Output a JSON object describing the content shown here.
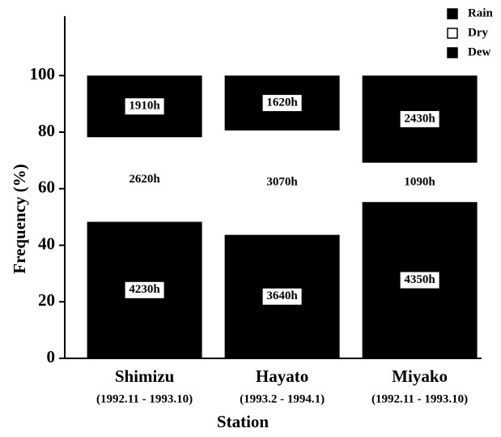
{
  "chart_data": {
    "type": "stacked-bar",
    "categories": [
      "Shimizu",
      "Hayato",
      "Miyako"
    ],
    "periods": [
      "(1992.11 - 1993.10)",
      "(1993.2 - 1994.1)",
      "(1992.11 - 1993.10)"
    ],
    "series": [
      {
        "name": "Dew",
        "color": "#000000",
        "values": [
          48.3,
          43.7,
          55.3
        ],
        "labels": [
          "4230h",
          "3640h",
          "4350h"
        ]
      },
      {
        "name": "Dry",
        "color": "#ffffff",
        "values": [
          29.9,
          36.9,
          13.9
        ],
        "labels": [
          "2620h",
          "3070h",
          "1090h"
        ]
      },
      {
        "name": "Rain",
        "color": "#000000",
        "values": [
          21.8,
          19.4,
          30.8
        ],
        "labels": [
          "1910h",
          "1620h",
          "2430h"
        ]
      }
    ],
    "legend_order": [
      "Rain",
      "Dry",
      "Dew"
    ],
    "ylabel": "Frequency  (%)",
    "xlabel": "Station",
    "ylim": [
      0,
      121
    ],
    "yticks": [
      0,
      20,
      40,
      60,
      80,
      100
    ]
  }
}
